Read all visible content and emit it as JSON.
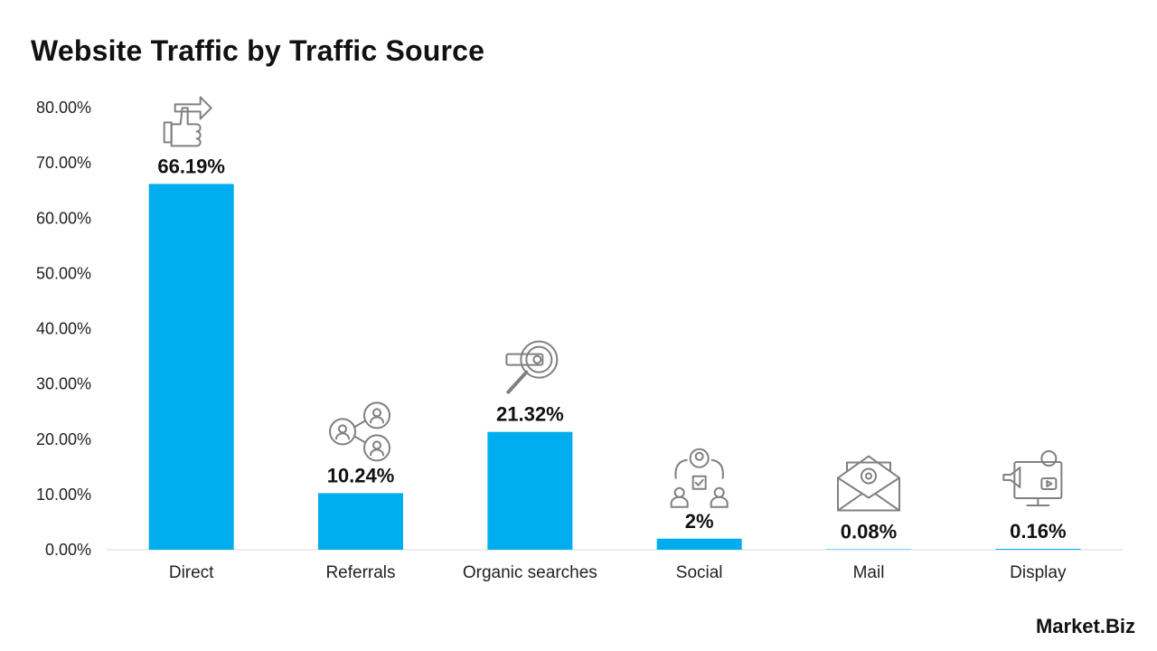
{
  "chart_data": {
    "type": "bar",
    "title": "Website Traffic by Traffic Source",
    "categories": [
      "Direct",
      "Referrals",
      "Organic searches",
      "Social",
      "Mail",
      "Display"
    ],
    "values": [
      66.19,
      10.24,
      21.32,
      2,
      0.08,
      0.16
    ],
    "value_labels": [
      "66.19%",
      "10.24%",
      "21.32%",
      "2%",
      "0.08%",
      "0.16%"
    ],
    "icons": [
      "thumbs-up-direction-icon",
      "referral-network-icon",
      "search-magnifier-icon",
      "social-people-icon",
      "mail-envelope-icon",
      "display-monitor-icon"
    ],
    "yticks": [
      "0.00%",
      "10.00%",
      "20.00%",
      "30.00%",
      "40.00%",
      "50.00%",
      "60.00%",
      "70.00%",
      "80.00%"
    ],
    "ylim": [
      0,
      80
    ],
    "xlabel": "",
    "ylabel": "",
    "grid": false,
    "bar_color": "#00AEEF",
    "icon_color": "#808080"
  },
  "branding": {
    "logo_part1": "Market",
    "logo_dot": ".",
    "logo_part2": "Biz"
  }
}
